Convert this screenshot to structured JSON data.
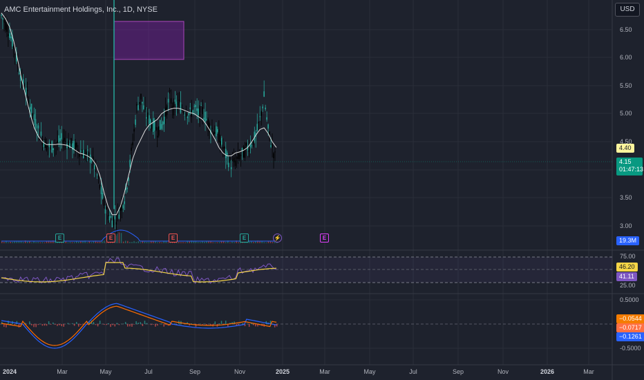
{
  "header": {
    "symbol_title": "AMC Entertainment Holdings, Inc., 1D, NYSE",
    "currency_button": "USD"
  },
  "price_axis": {
    "ticks": [
      "6.50",
      "6.00",
      "5.50",
      "5.00",
      "4.50",
      "3.50",
      "3.00"
    ]
  },
  "price_tags": {
    "ma_value": "4.40",
    "last_price": "4.15",
    "countdown": "01:47:13"
  },
  "volume": {
    "value_tag": "19.3M"
  },
  "rsi": {
    "ticks": [
      "75.00",
      "25.00"
    ],
    "ma_tag": "46.20",
    "rsi_tag": "41.11"
  },
  "macd": {
    "ticks": [
      "0.5000",
      "-0.5000"
    ],
    "hist_tag": "−0.0544",
    "signal_tag": "−0.0717",
    "macd_tag": "−0.1261"
  },
  "time_axis": {
    "labels": [
      "2024",
      "Mar",
      "May",
      "Jul",
      "Sep",
      "Nov",
      "2025",
      "Mar",
      "May",
      "Jul",
      "Sep",
      "Nov",
      "2026",
      "Mar"
    ]
  },
  "events": [
    {
      "glyph": "E",
      "kind": "earnings-past"
    },
    {
      "glyph": "E",
      "kind": "earnings-miss"
    },
    {
      "glyph": "E",
      "kind": "earnings-miss"
    },
    {
      "glyph": "E",
      "kind": "earnings-past"
    },
    {
      "glyph": "⚡",
      "kind": "dividend-split"
    },
    {
      "glyph": "E",
      "kind": "earnings-upcoming"
    }
  ],
  "colors": {
    "background": "#1e222d",
    "up": "#26a69a",
    "down": "#000000",
    "ma_line": "#e0e0e0",
    "rsi_line": "#7e57c2",
    "rsi_ma": "#f5d547",
    "macd_line": "#2962ff",
    "signal_line": "#ff6d00",
    "zone": "#7b1fa2"
  },
  "chart_data": {
    "type": "candlestick",
    "title": "AMC Entertainment Holdings, Inc., 1D, NYSE",
    "ylim": [
      2.9,
      6.8
    ],
    "closes": [
      6.75,
      6.6,
      6.45,
      6.2,
      5.9,
      5.6,
      5.4,
      5.15,
      4.9,
      4.7,
      4.55,
      4.45,
      4.4,
      4.45,
      4.5,
      4.55,
      4.5,
      4.45,
      4.4,
      4.35,
      4.3,
      4.25,
      4.2,
      4.0,
      3.7,
      3.4,
      3.2,
      3.1,
      3.15,
      3.3,
      3.5,
      3.9,
      4.5,
      5.1,
      5.3,
      5.0,
      4.9,
      4.8,
      4.7,
      4.8,
      5.0,
      5.3,
      5.1,
      5.2,
      5.1,
      5.05,
      5.0,
      5.1,
      5.0,
      5.05,
      4.9,
      4.75,
      4.7,
      4.6,
      4.4,
      4.2,
      4.1,
      4.15,
      4.25,
      4.3,
      4.4,
      4.5,
      4.6,
      4.9,
      5.3,
      4.7,
      4.4,
      4.15
    ],
    "ma_closes": [
      6.8,
      6.7,
      6.55,
      6.3,
      5.95,
      5.6,
      5.3,
      5.0,
      4.75,
      4.6,
      4.5,
      4.45,
      4.45,
      4.45,
      4.46,
      4.45,
      4.44,
      4.4,
      4.35,
      4.3,
      4.28,
      4.25,
      4.2,
      4.1,
      3.9,
      3.6,
      3.35,
      3.2,
      3.2,
      3.35,
      3.6,
      3.9,
      4.2,
      4.4,
      4.55,
      4.7,
      4.8,
      4.85,
      4.9,
      5.0,
      5.05,
      5.08,
      5.1,
      5.1,
      5.08,
      5.05,
      5.02,
      5.0,
      4.95,
      4.9,
      4.8,
      4.68,
      4.55,
      4.4,
      4.3,
      4.25,
      4.25,
      4.3,
      4.32,
      4.35,
      4.4,
      4.5,
      4.62,
      4.72,
      4.75,
      4.65,
      4.5,
      4.4
    ],
    "rsi": {
      "range": [
        0,
        100
      ],
      "bands": [
        75,
        25
      ],
      "last_rsi": 41.11,
      "last_ma": 46.2
    },
    "macd": {
      "range": [
        -0.5,
        0.5
      ],
      "last_macd": -0.1261,
      "last_signal": -0.0717,
      "last_hist": -0.0544
    },
    "last_price": 4.15
  }
}
